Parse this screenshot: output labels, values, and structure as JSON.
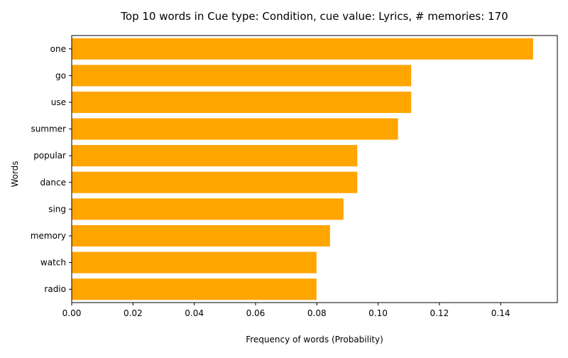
{
  "chart_data": {
    "type": "bar",
    "orientation": "horizontal",
    "title": "Top 10 words in Cue type: Condition, cue value: Lyrics, # memories: 170",
    "xlabel": "Frequency of words (Probability)",
    "ylabel": "Words",
    "categories": [
      "one",
      "go",
      "use",
      "summer",
      "popular",
      "dance",
      "sing",
      "memory",
      "watch",
      "radio"
    ],
    "values": [
      0.1506,
      0.1108,
      0.1108,
      0.1065,
      0.0932,
      0.0932,
      0.0887,
      0.0843,
      0.0799,
      0.0799
    ],
    "xlim": [
      0,
      0.1585
    ],
    "xticks": [
      "0.00",
      "0.02",
      "0.04",
      "0.06",
      "0.08",
      "0.10",
      "0.12",
      "0.14"
    ],
    "bar_color": "#FFA500",
    "grid": false
  }
}
